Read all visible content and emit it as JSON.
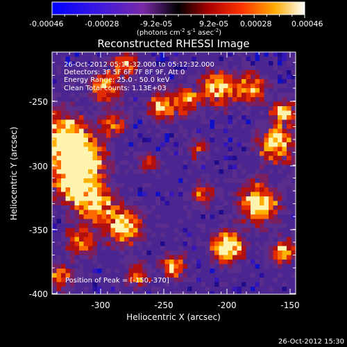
{
  "colorbar": {
    "ticks": [
      "-0.00046",
      "-0.00028",
      "-9.2e-05",
      "9.2e-05",
      "0.00028",
      "0.00046"
    ],
    "units_prefix": "(photons cm",
    "units_exp1": "-2",
    "units_mid": " s",
    "units_exp2": "-1",
    "units_mid2": " asec",
    "units_exp3": "-2",
    "units_suffix": ")"
  },
  "plot": {
    "title": "Reconstructed RHESSI Image",
    "info_lines": [
      "26-Oct-2012 05:11:32.000 to 05:12:32.000",
      "Detectors: 3F 5F 6F 7F 8F 9F, Att 0",
      "Energy Range: 25.0 - 50.0 keV",
      "Clean    Total counts: 1.13E+03"
    ],
    "peak_text": "Position of Peak = [-150,-370]",
    "xlabel": "Heliocentric X (arcsec)",
    "ylabel": "Heliocentric Y (arcsec)",
    "x_ticks": [
      "-300",
      "-250",
      "-200",
      "-150"
    ],
    "y_ticks": [
      "-250",
      "-300",
      "-350",
      "-400"
    ],
    "xlim": [
      -335,
      -145
    ],
    "ylim": [
      -403,
      -210
    ]
  },
  "footer": {
    "timestamp": "26-Oct-2012 15:30"
  }
}
